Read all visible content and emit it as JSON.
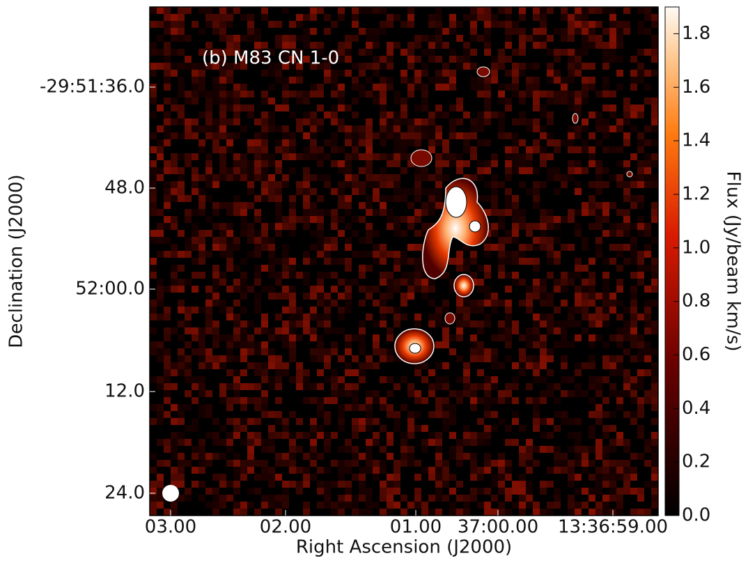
{
  "chart_data": {
    "type": "image",
    "title": "(b) M83 CN 1-0",
    "x_label": "Right Ascension (J2000)",
    "y_label": "Declination (J2000)",
    "x_tick_labels": [
      "03.00",
      "02.00",
      "01.00",
      "37:00.00",
      "13:36:59.00"
    ],
    "y_tick_labels": [
      "-29:51:36.0",
      "48.0",
      "52:00.0",
      "12.0",
      "24.0"
    ],
    "colorbar": {
      "label": "Flux (Jy/beam km/s)",
      "lim": [
        0,
        1.9
      ],
      "ticks": [
        {
          "value": 0,
          "label": "0.0"
        },
        0.2,
        0.4,
        0.6,
        0.8,
        {
          "value": 1,
          "label": "1.0"
        },
        1.2,
        1.4,
        1.6,
        1.8
      ]
    }
  }
}
